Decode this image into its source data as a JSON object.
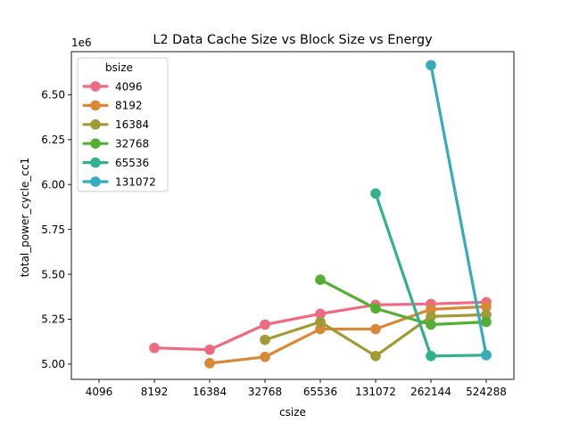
{
  "chart_data": {
    "type": "line",
    "title": "L2 Data Cache Size vs Block Size vs Energy",
    "xlabel": "csize",
    "ylabel": "total_power_cycle_cc1",
    "y_offset_label": "1e6",
    "categories": [
      "4096",
      "8192",
      "16384",
      "32768",
      "65536",
      "131072",
      "262144",
      "524288"
    ],
    "y_ticks": [
      "5.00",
      "5.25",
      "5.50",
      "5.75",
      "6.00",
      "6.25",
      "6.50"
    ],
    "y_tick_values": [
      5.0,
      5.25,
      5.5,
      5.75,
      6.0,
      6.25,
      6.5
    ],
    "ylim": [
      4.915,
      6.74
    ],
    "grid": false,
    "legend": {
      "title": "bsize",
      "position": "top-left"
    },
    "series": [
      {
        "name": "4096",
        "color": "#ee6a82",
        "values": [
          null,
          5.09,
          5.08,
          5.22,
          5.28,
          5.33,
          5.335,
          5.345
        ]
      },
      {
        "name": "8192",
        "color": "#d98838",
        "values": [
          null,
          null,
          5.005,
          5.04,
          5.195,
          5.195,
          5.305,
          5.32
        ]
      },
      {
        "name": "16384",
        "color": "#a19a36",
        "values": [
          null,
          null,
          null,
          5.135,
          5.235,
          5.045,
          5.265,
          5.275
        ]
      },
      {
        "name": "32768",
        "color": "#56ad34",
        "values": [
          null,
          null,
          null,
          null,
          5.47,
          5.31,
          5.22,
          5.235
        ]
      },
      {
        "name": "65536",
        "color": "#33b08e",
        "values": [
          null,
          null,
          null,
          null,
          null,
          5.95,
          5.045,
          5.05
        ]
      },
      {
        "name": "131072",
        "color": "#36abbb",
        "values": [
          null,
          null,
          null,
          null,
          null,
          null,
          6.665,
          5.05
        ]
      }
    ]
  }
}
